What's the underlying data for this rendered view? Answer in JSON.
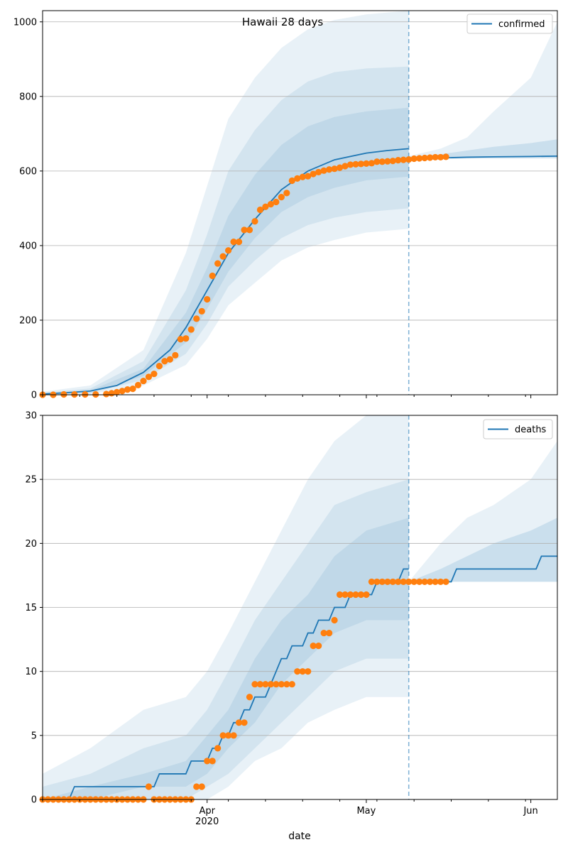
{
  "figure": {
    "title": "Hawaii 28 days",
    "xlabel": "date"
  },
  "colors": {
    "line": "#1f77b4",
    "band": "#1f77b4",
    "points": "#ff7f0e",
    "grid": "#b0b0b0",
    "vline": "#1f77b4"
  },
  "chart_data": [
    {
      "type": "line",
      "panel": "confirmed",
      "legend": "confirmed",
      "legend_position": "top-right",
      "xlim": [
        "2020-03-01",
        "2020-06-06"
      ],
      "ylim": [
        0,
        1030
      ],
      "yticks": [
        0,
        200,
        400,
        600,
        800,
        1000
      ],
      "grid": "y",
      "forecast_start": "2020-05-09",
      "model_line": {
        "name": "confirmed",
        "dates": [
          "2020-03-01",
          "2020-03-05",
          "2020-03-10",
          "2020-03-15",
          "2020-03-20",
          "2020-03-25",
          "2020-03-28",
          "2020-04-01",
          "2020-04-05",
          "2020-04-10",
          "2020-04-15",
          "2020-04-20",
          "2020-04-25",
          "2020-05-01",
          "2020-05-05",
          "2020-05-09"
        ],
        "values": [
          2,
          5,
          10,
          25,
          60,
          120,
          180,
          280,
          380,
          470,
          550,
          600,
          630,
          648,
          655,
          660
        ]
      },
      "forecast_line": {
        "dates": [
          "2020-05-09",
          "2020-05-15",
          "2020-05-20",
          "2020-05-25",
          "2020-06-01",
          "2020-06-06"
        ],
        "values": [
          632,
          635,
          637,
          638,
          639,
          640
        ]
      },
      "bands": [
        {
          "level": "outer",
          "dates": [
            "2020-03-01",
            "2020-03-10",
            "2020-03-20",
            "2020-03-28",
            "2020-04-01",
            "2020-04-05",
            "2020-04-10",
            "2020-04-15",
            "2020-04-20",
            "2020-04-25",
            "2020-05-01",
            "2020-05-09"
          ],
          "lower": [
            0,
            2,
            25,
            80,
            150,
            240,
            300,
            360,
            395,
            415,
            435,
            445
          ],
          "upper": [
            8,
            25,
            120,
            380,
            560,
            740,
            850,
            930,
            980,
            1005,
            1020,
            1030
          ]
        },
        {
          "level": "middle",
          "dates": [
            "2020-03-01",
            "2020-03-10",
            "2020-03-20",
            "2020-03-28",
            "2020-04-01",
            "2020-04-05",
            "2020-04-10",
            "2020-04-15",
            "2020-04-20",
            "2020-04-25",
            "2020-05-01",
            "2020-05-09"
          ],
          "lower": [
            0,
            4,
            40,
            110,
            190,
            290,
            360,
            420,
            455,
            475,
            490,
            500
          ],
          "upper": [
            5,
            17,
            90,
            280,
            430,
            600,
            710,
            790,
            840,
            865,
            875,
            880
          ]
        },
        {
          "level": "inner",
          "dates": [
            "2020-03-01",
            "2020-03-10",
            "2020-03-20",
            "2020-03-28",
            "2020-04-01",
            "2020-04-05",
            "2020-04-10",
            "2020-04-15",
            "2020-04-20",
            "2020-04-25",
            "2020-05-01",
            "2020-05-09"
          ],
          "lower": [
            1,
            7,
            50,
            140,
            230,
            330,
            420,
            490,
            530,
            555,
            575,
            585
          ],
          "upper": [
            3,
            12,
            70,
            220,
            340,
            480,
            590,
            670,
            720,
            745,
            760,
            770
          ]
        },
        {
          "level": "forecast-outer",
          "dates": [
            "2020-05-09",
            "2020-05-15",
            "2020-05-20",
            "2020-05-25",
            "2020-06-01",
            "2020-06-06"
          ],
          "lower": [
            630,
            632,
            633,
            633,
            633,
            633
          ],
          "upper": [
            640,
            660,
            690,
            760,
            850,
            1000
          ]
        },
        {
          "level": "forecast-inner",
          "dates": [
            "2020-05-09",
            "2020-05-15",
            "2020-05-20",
            "2020-05-25",
            "2020-06-01",
            "2020-06-06"
          ],
          "lower": [
            632,
            634,
            635,
            635,
            635,
            635
          ],
          "upper": [
            636,
            645,
            655,
            665,
            675,
            685
          ]
        }
      ],
      "observed": {
        "dates": [
          "2020-03-01",
          "2020-03-03",
          "2020-03-05",
          "2020-03-07",
          "2020-03-09",
          "2020-03-11",
          "2020-03-13",
          "2020-03-14",
          "2020-03-15",
          "2020-03-16",
          "2020-03-17",
          "2020-03-18",
          "2020-03-19",
          "2020-03-20",
          "2020-03-21",
          "2020-03-22",
          "2020-03-23",
          "2020-03-24",
          "2020-03-25",
          "2020-03-26",
          "2020-03-27",
          "2020-03-28",
          "2020-03-29",
          "2020-03-30",
          "2020-03-31",
          "2020-04-01",
          "2020-04-02",
          "2020-04-03",
          "2020-04-04",
          "2020-04-05",
          "2020-04-06",
          "2020-04-07",
          "2020-04-08",
          "2020-04-09",
          "2020-04-10",
          "2020-04-11",
          "2020-04-12",
          "2020-04-13",
          "2020-04-14",
          "2020-04-15",
          "2020-04-16",
          "2020-04-17",
          "2020-04-18",
          "2020-04-19",
          "2020-04-20",
          "2020-04-21",
          "2020-04-22",
          "2020-04-23",
          "2020-04-24",
          "2020-04-25",
          "2020-04-26",
          "2020-04-27",
          "2020-04-28",
          "2020-04-29",
          "2020-04-30",
          "2020-05-01",
          "2020-05-02",
          "2020-05-03",
          "2020-05-04",
          "2020-05-05",
          "2020-05-06",
          "2020-05-07",
          "2020-05-08",
          "2020-05-09",
          "2020-05-10",
          "2020-05-11",
          "2020-05-12",
          "2020-05-13",
          "2020-05-14",
          "2020-05-15",
          "2020-05-16"
        ],
        "values": [
          0,
          0,
          1,
          1,
          1,
          1,
          2,
          4,
          7,
          10,
          14,
          16,
          26,
          37,
          48,
          56,
          77,
          90,
          95,
          106,
          149,
          151,
          175,
          204,
          224,
          256,
          319,
          352,
          371,
          387,
          410,
          410,
          442,
          442,
          465,
          496,
          504,
          511,
          517,
          530,
          541,
          574,
          580,
          584,
          586,
          592,
          597,
          601,
          604,
          606,
          609,
          613,
          617,
          618,
          619,
          620,
          621,
          625,
          625,
          626,
          627,
          629,
          630,
          631,
          633,
          634,
          635,
          636,
          637,
          637,
          638
        ]
      }
    },
    {
      "type": "line",
      "panel": "deaths",
      "legend": "deaths",
      "legend_position": "top-right",
      "xlabel": "date",
      "xlim": [
        "2020-03-01",
        "2020-06-06"
      ],
      "ylim": [
        0,
        30
      ],
      "yticks": [
        0,
        5,
        10,
        15,
        20,
        25,
        30
      ],
      "xticks": [
        "Apr\n2020",
        "May",
        "Jun"
      ],
      "grid": "y",
      "forecast_start": "2020-05-09",
      "model_line": {
        "name": "deaths",
        "dates": [
          "2020-03-01",
          "2020-03-06",
          "2020-03-07",
          "2020-03-22",
          "2020-03-23",
          "2020-03-28",
          "2020-03-29",
          "2020-04-01",
          "2020-04-02",
          "2020-04-03",
          "2020-04-04",
          "2020-04-05",
          "2020-04-06",
          "2020-04-07",
          "2020-04-08",
          "2020-04-09",
          "2020-04-10",
          "2020-04-11",
          "2020-04-12",
          "2020-04-13",
          "2020-04-14",
          "2020-04-15",
          "2020-04-16",
          "2020-04-17",
          "2020-04-18",
          "2020-04-19",
          "2020-04-20",
          "2020-04-21",
          "2020-04-22",
          "2020-04-23",
          "2020-04-24",
          "2020-04-25",
          "2020-04-26",
          "2020-04-27",
          "2020-04-28",
          "2020-04-29",
          "2020-04-30",
          "2020-05-01",
          "2020-05-02",
          "2020-05-03",
          "2020-05-04",
          "2020-05-05",
          "2020-05-06",
          "2020-05-07",
          "2020-05-08",
          "2020-05-09"
        ],
        "values": [
          0,
          0,
          1,
          1,
          2,
          2,
          3,
          3,
          4,
          4,
          5,
          5,
          6,
          6,
          7,
          7,
          8,
          8,
          8,
          9,
          10,
          11,
          11,
          12,
          12,
          12,
          13,
          13,
          14,
          14,
          14,
          15,
          15,
          15,
          16,
          16,
          16,
          16,
          16,
          17,
          17,
          17,
          17,
          17,
          18,
          18
        ]
      },
      "forecast_line": {
        "dates": [
          "2020-05-09",
          "2020-05-17",
          "2020-05-18",
          "2020-06-02",
          "2020-06-03",
          "2020-06-06"
        ],
        "values": [
          17,
          17,
          18,
          18,
          19,
          19
        ]
      },
      "bands": [
        {
          "level": "outer",
          "dates": [
            "2020-03-01",
            "2020-03-10",
            "2020-03-20",
            "2020-03-28",
            "2020-04-01",
            "2020-04-05",
            "2020-04-10",
            "2020-04-15",
            "2020-04-20",
            "2020-04-25",
            "2020-05-01",
            "2020-05-09"
          ],
          "lower": [
            0,
            0,
            0,
            0,
            0,
            1,
            3,
            4,
            6,
            7,
            8,
            8
          ],
          "upper": [
            2,
            4,
            7,
            8,
            10,
            13,
            17,
            21,
            25,
            28,
            30,
            30
          ]
        },
        {
          "level": "middle",
          "dates": [
            "2020-03-01",
            "2020-03-10",
            "2020-03-20",
            "2020-03-28",
            "2020-04-01",
            "2020-04-05",
            "2020-04-10",
            "2020-04-15",
            "2020-04-20",
            "2020-04-25",
            "2020-05-01",
            "2020-05-09"
          ],
          "lower": [
            0,
            0,
            0,
            0,
            1,
            2,
            4,
            6,
            8,
            10,
            11,
            11
          ],
          "upper": [
            1,
            2,
            4,
            5,
            7,
            10,
            14,
            17,
            20,
            23,
            24,
            25
          ]
        },
        {
          "level": "inner",
          "dates": [
            "2020-03-01",
            "2020-03-10",
            "2020-03-20",
            "2020-03-28",
            "2020-04-01",
            "2020-04-05",
            "2020-04-10",
            "2020-04-15",
            "2020-04-20",
            "2020-04-25",
            "2020-05-01",
            "2020-05-09"
          ],
          "lower": [
            0,
            0,
            1,
            1,
            2,
            4,
            6,
            9,
            11,
            13,
            14,
            14
          ],
          "upper": [
            0,
            1,
            2,
            3,
            5,
            7,
            11,
            14,
            16,
            19,
            21,
            22
          ]
        },
        {
          "level": "forecast-outer",
          "dates": [
            "2020-05-09",
            "2020-05-15",
            "2020-05-20",
            "2020-05-25",
            "2020-06-01",
            "2020-06-06"
          ],
          "lower": [
            17,
            17,
            17,
            17,
            17,
            17
          ],
          "upper": [
            17,
            20,
            22,
            23,
            25,
            28
          ]
        },
        {
          "level": "forecast-inner",
          "dates": [
            "2020-05-09",
            "2020-05-15",
            "2020-05-20",
            "2020-05-25",
            "2020-06-01",
            "2020-06-06"
          ],
          "lower": [
            17,
            17,
            17,
            17,
            17,
            17
          ],
          "upper": [
            17,
            18,
            19,
            20,
            21,
            22
          ]
        }
      ],
      "observed": {
        "dates": [
          "2020-03-01",
          "2020-03-02",
          "2020-03-03",
          "2020-03-04",
          "2020-03-05",
          "2020-03-06",
          "2020-03-07",
          "2020-03-08",
          "2020-03-09",
          "2020-03-10",
          "2020-03-11",
          "2020-03-12",
          "2020-03-13",
          "2020-03-14",
          "2020-03-15",
          "2020-03-16",
          "2020-03-17",
          "2020-03-18",
          "2020-03-19",
          "2020-03-20",
          "2020-03-21",
          "2020-03-22",
          "2020-03-23",
          "2020-03-24",
          "2020-03-25",
          "2020-03-26",
          "2020-03-27",
          "2020-03-28",
          "2020-03-29",
          "2020-03-30",
          "2020-03-31",
          "2020-04-01",
          "2020-04-02",
          "2020-04-03",
          "2020-04-04",
          "2020-04-05",
          "2020-04-06",
          "2020-04-07",
          "2020-04-08",
          "2020-04-09",
          "2020-04-10",
          "2020-04-11",
          "2020-04-12",
          "2020-04-13",
          "2020-04-14",
          "2020-04-15",
          "2020-04-16",
          "2020-04-17",
          "2020-04-18",
          "2020-04-19",
          "2020-04-20",
          "2020-04-21",
          "2020-04-22",
          "2020-04-23",
          "2020-04-24",
          "2020-04-25",
          "2020-04-26",
          "2020-04-27",
          "2020-04-28",
          "2020-04-29",
          "2020-04-30",
          "2020-05-01",
          "2020-05-02",
          "2020-05-03",
          "2020-05-04",
          "2020-05-05",
          "2020-05-06",
          "2020-05-07",
          "2020-05-08",
          "2020-05-09",
          "2020-05-10",
          "2020-05-11",
          "2020-05-12",
          "2020-05-13",
          "2020-05-14",
          "2020-05-15",
          "2020-05-16"
        ],
        "values": [
          0,
          0,
          0,
          0,
          0,
          0,
          0,
          0,
          0,
          0,
          0,
          0,
          0,
          0,
          0,
          0,
          0,
          0,
          0,
          0,
          1,
          0,
          0,
          0,
          0,
          0,
          0,
          0,
          0,
          1,
          1,
          3,
          3,
          4,
          5,
          5,
          5,
          6,
          6,
          8,
          9,
          9,
          9,
          9,
          9,
          9,
          9,
          9,
          10,
          10,
          10,
          12,
          12,
          13,
          13,
          14,
          16,
          16,
          16,
          16,
          16,
          16,
          17,
          17,
          17,
          17,
          17,
          17,
          17,
          17,
          17,
          17,
          17,
          17,
          17,
          17,
          17
        ]
      }
    }
  ]
}
